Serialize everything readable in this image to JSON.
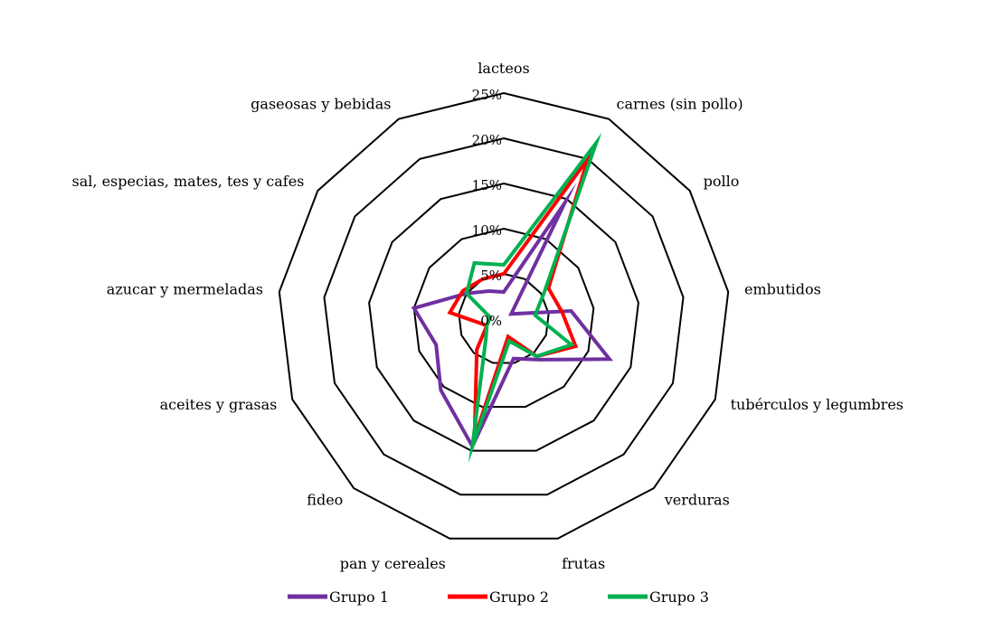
{
  "chart_data": {
    "type": "radar",
    "title": "",
    "categories": [
      "lacteos",
      "carnes (sin pollo)",
      "pollo",
      "embutidos",
      "tubérculos y legumbres",
      "verduras",
      "frutas",
      "pan y cereales",
      "fideo",
      "aceites y grasas",
      "azucar y mermeladas",
      "sal, especias, mates, tes y cafes",
      "gaseosas y bebidas"
    ],
    "rlim": [
      0,
      25
    ],
    "ticks": [
      0,
      5,
      10,
      15,
      20,
      25
    ],
    "tick_labels": [
      "0%",
      "5%",
      "10%",
      "15%",
      "20%",
      "25%"
    ],
    "grid": true,
    "grid_shape": "polygon",
    "legend_position": "bottom",
    "series": [
      {
        "name": "Grupo 1",
        "color": "#7030A0",
        "values": [
          3,
          14.5,
          1,
          7.5,
          12.5,
          6,
          4.5,
          14.5,
          10.5,
          8,
          10,
          5,
          3.5
        ]
      },
      {
        "name": "Grupo 2",
        "color": "#FF0000",
        "values": [
          5,
          20,
          6,
          6.5,
          8.5,
          5.5,
          2,
          13.5,
          4.5,
          2,
          6,
          5.5,
          5
        ]
      },
      {
        "name": "Grupo 3",
        "color": "#00B050",
        "values": [
          6,
          22,
          5.5,
          3.5,
          8,
          5.5,
          2.5,
          14.5,
          3,
          2,
          1.5,
          5,
          7
        ]
      }
    ]
  }
}
